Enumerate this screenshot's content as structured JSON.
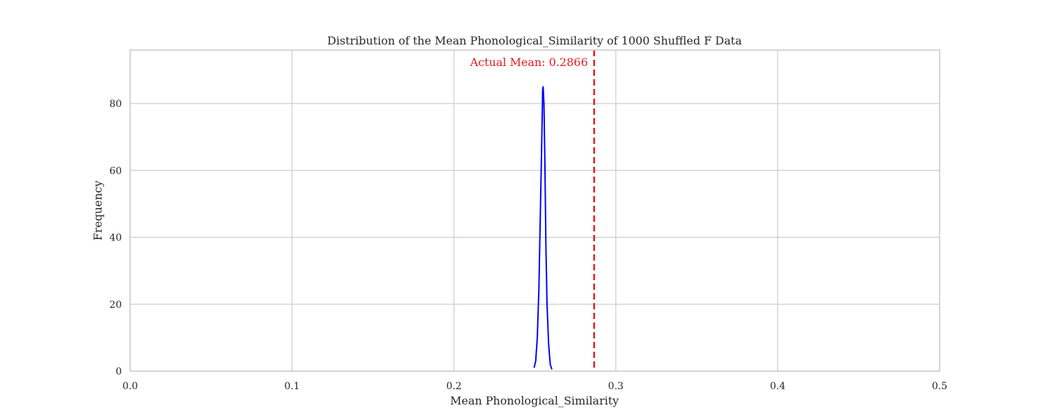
{
  "chart_data": {
    "type": "line",
    "title": "Distribution of the Mean Phonological_Similarity of 1000 Shuffled F Data",
    "xlabel": "Mean Phonological_Similarity",
    "ylabel": "Frequency",
    "xlim": [
      0.0,
      0.5
    ],
    "ylim": [
      0,
      96
    ],
    "xticks": [
      0.0,
      0.1,
      0.2,
      0.3,
      0.4,
      0.5
    ],
    "xtick_labels": [
      "0.0",
      "0.1",
      "0.2",
      "0.3",
      "0.4",
      "0.5"
    ],
    "yticks": [
      0,
      20,
      40,
      60,
      80
    ],
    "ytick_labels": [
      "0",
      "20",
      "40",
      "60",
      "80"
    ],
    "grid": true,
    "series": [
      {
        "color": "#0000ff",
        "x": [
          0.2495,
          0.2505,
          0.2515,
          0.2525,
          0.2535,
          0.2545,
          0.2548,
          0.2551,
          0.2556,
          0.2562,
          0.2568,
          0.2575,
          0.2585,
          0.2595,
          0.2605
        ],
        "y": [
          1,
          3,
          10,
          25,
          50,
          75,
          84,
          85,
          80,
          62,
          38,
          20,
          8,
          2,
          0.5
        ]
      }
    ],
    "vline": {
      "x": 0.2866,
      "color": "#e41a1c",
      "style": "dashed",
      "label": "Actual Mean: 0.2866"
    }
  }
}
